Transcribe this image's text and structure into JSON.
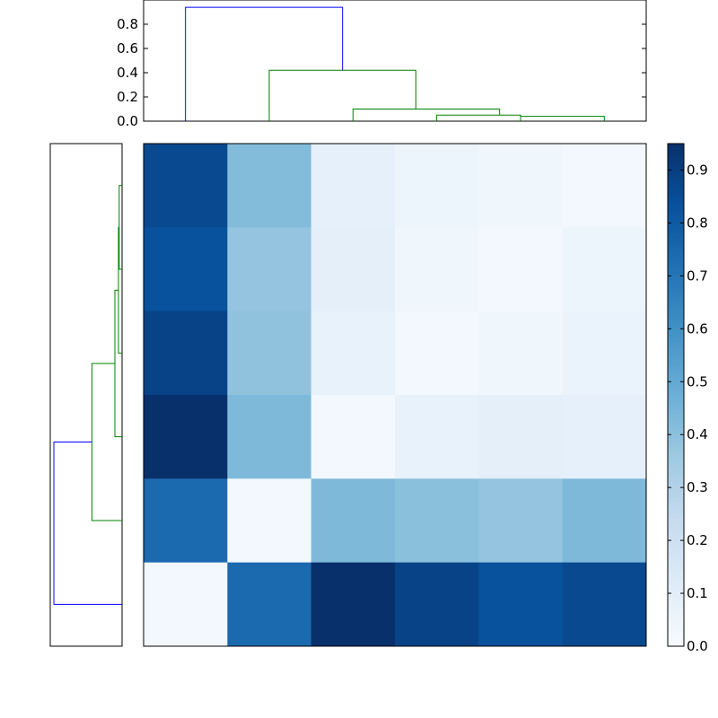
{
  "chart_data": [
    {
      "type": "dendrogram",
      "orientation": "top",
      "ylim": [
        0,
        1.0
      ],
      "yticks": [
        "0.0",
        "0.2",
        "0.4",
        "0.6",
        "0.8"
      ],
      "links": [
        {
          "left": 0.5,
          "right": 2.5,
          "left_h": 0.0,
          "right_h": 0.0,
          "height": 0.06,
          "color": "#008000"
        },
        {
          "left": 1.5,
          "right": 3.5,
          "left_h": 0.0,
          "right_h": 0.06,
          "height": 0.1,
          "color": "#008000"
        },
        {
          "left": 0.5,
          "right": 2.5,
          "left_h": 0.0,
          "right_h": 0.1,
          "height": 0.42,
          "color": "#008000"
        },
        {
          "left": 0.5,
          "right": 2.5,
          "left_h": 0.0,
          "right_h": 0.42,
          "height": 0.95,
          "color": "#0000ff"
        }
      ],
      "leaf_offsets": [
        0,
        0,
        1,
        2,
        3
      ],
      "leaves": 6
    },
    {
      "type": "dendrogram",
      "orientation": "left",
      "xlim": [
        0,
        1.0
      ],
      "leaves": 6,
      "links": [
        {
          "y_top": 0.5,
          "y_bottom": 1.5,
          "top_h": 0.0,
          "bottom_h": 0.0,
          "height": 0.06,
          "color": "#008000"
        },
        {
          "y_top": 1.0,
          "y_bottom": 2.5,
          "top_h": 0.06,
          "bottom_h": 0.0,
          "height": 0.1,
          "color": "#008000"
        },
        {
          "y_top": 1.75,
          "y_bottom": 4.5,
          "top_h": 0.1,
          "bottom_h": 0.0,
          "height": 0.42,
          "color": "#008000"
        },
        {
          "y_top": 3.5,
          "y_bottom": 5.5,
          "top_h": 0.42,
          "bottom_h": 0.0,
          "height": 0.95,
          "color": "#0000ff"
        }
      ]
    },
    {
      "type": "heatmap",
      "colormap": "Blues",
      "vmin": 0.0,
      "vmax": 0.95,
      "rows": [
        [
          0.86,
          0.42,
          0.08,
          0.05,
          0.04,
          0.02
        ],
        [
          0.83,
          0.38,
          0.09,
          0.04,
          0.02,
          0.05
        ],
        [
          0.88,
          0.39,
          0.07,
          0.02,
          0.04,
          0.06
        ],
        [
          0.95,
          0.43,
          0.02,
          0.07,
          0.09,
          0.08
        ],
        [
          0.74,
          0.02,
          0.43,
          0.4,
          0.38,
          0.43
        ],
        [
          0.02,
          0.74,
          0.95,
          0.88,
          0.83,
          0.86
        ]
      ]
    },
    {
      "type": "colorbar",
      "colormap": "Blues",
      "min": 0.0,
      "max": 0.95,
      "ticks": [
        "0.0",
        "0.1",
        "0.2",
        "0.3",
        "0.4",
        "0.5",
        "0.6",
        "0.7",
        "0.8",
        "0.9"
      ]
    }
  ]
}
